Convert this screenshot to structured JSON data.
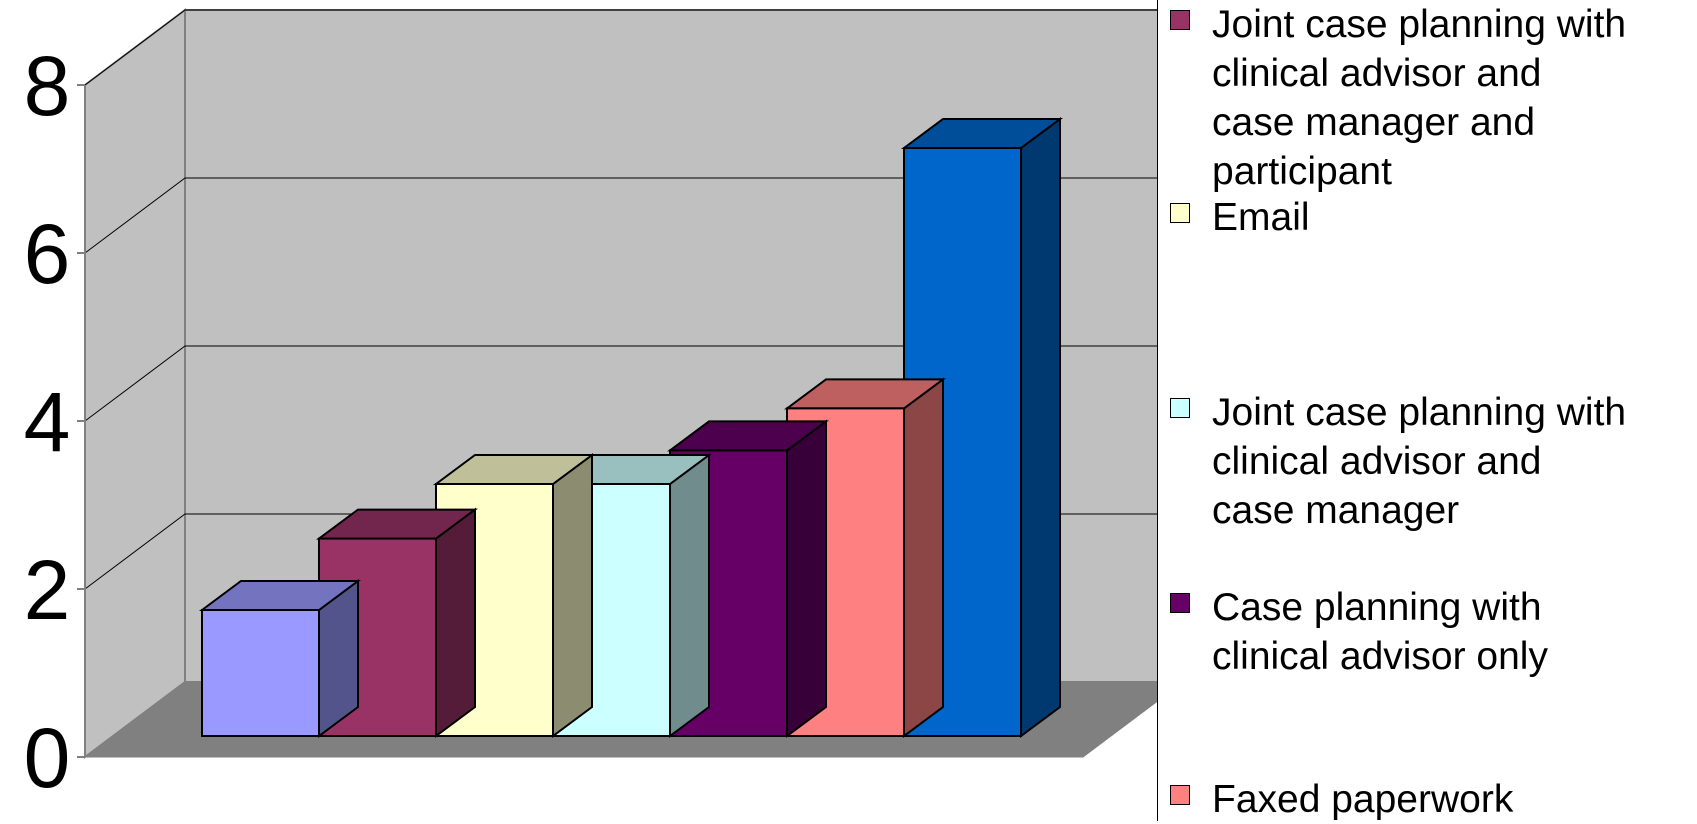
{
  "chart_data": {
    "type": "bar",
    "style": "3d-column",
    "categories": [
      "",
      "Joint case planning with clinical advisor and case manager and participant",
      "Email",
      "Joint case planning with clinical advisor and case manager",
      "Case planning with clinical advisor only",
      "Faxed paperwork",
      ""
    ],
    "values": [
      1.5,
      2.35,
      3,
      3,
      3.4,
      3.9,
      7
    ],
    "colors": [
      "#9999FF",
      "#993366",
      "#FFFFCC",
      "#CCFFFF",
      "#660066",
      "#FF8080",
      "#0066CC"
    ],
    "ylim": [
      0,
      8
    ],
    "yticks": [
      "0",
      "2",
      "4",
      "6",
      "8"
    ],
    "grid": true,
    "legend_position": "right",
    "legend": [
      {
        "label": "Joint case planning with\nclinical advisor and\ncase manager and\nparticipant",
        "color": "#993366"
      },
      {
        "label": "Email",
        "color": "#FFFFCC"
      },
      {
        "label": "Joint case planning with\nclinical advisor and\ncase manager",
        "color": "#CCFFFF"
      },
      {
        "label": "Case planning with\nclinical advisor only",
        "color": "#660066"
      },
      {
        "label": "Faxed paperwork",
        "color": "#FF8080"
      }
    ]
  }
}
